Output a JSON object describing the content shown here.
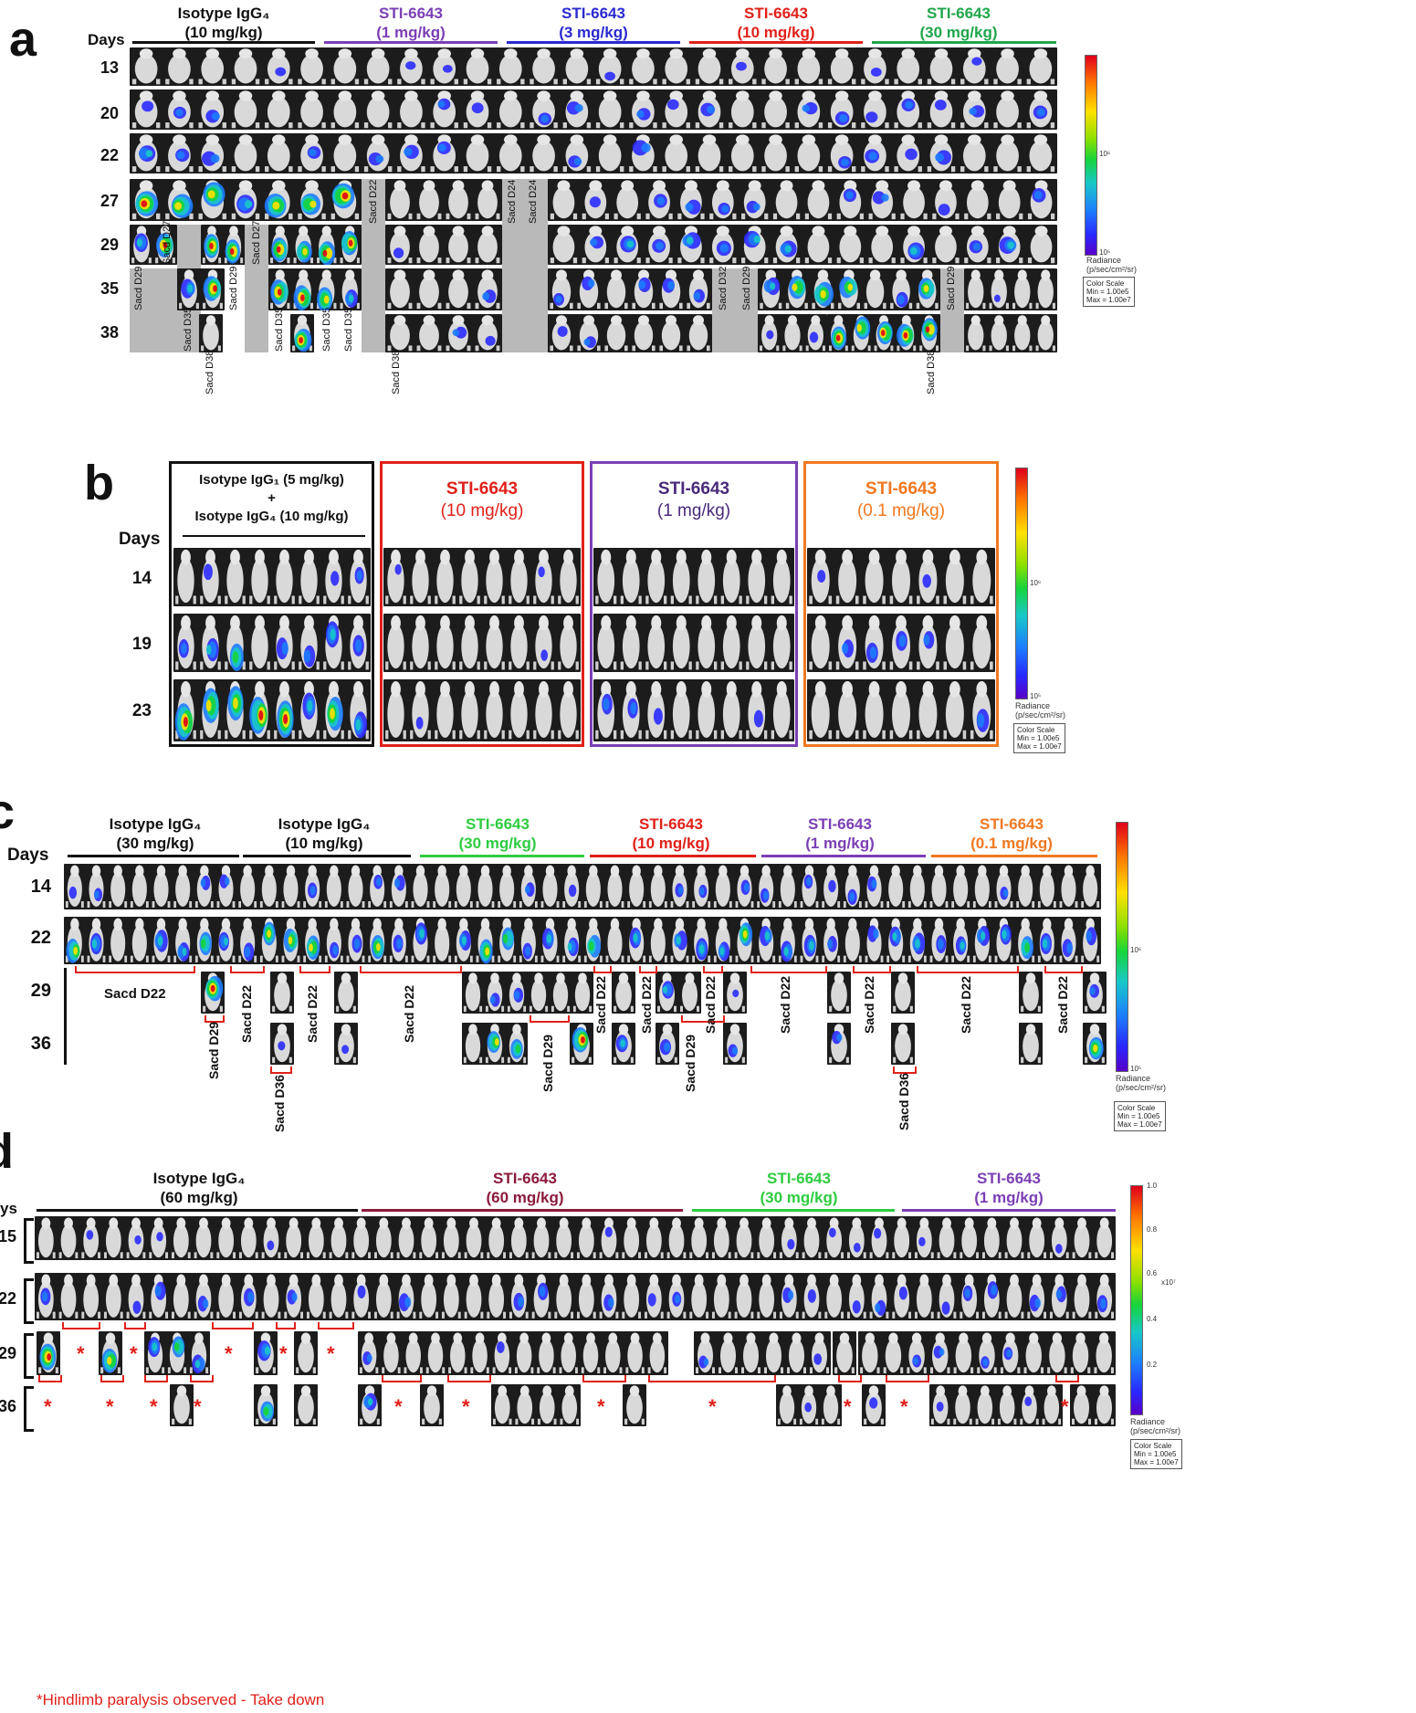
{
  "panel_a": {
    "label": "a",
    "days_label": "Days",
    "days": [
      "13",
      "20",
      "22",
      "27",
      "29",
      "35",
      "38"
    ],
    "groups": [
      {
        "line1": "Isotype IgG₄",
        "line2": "(10 mg/kg)",
        "color": "#111111"
      },
      {
        "line1": "STI-6643",
        "line2": "(1 mg/kg)",
        "color": "#7b3fb5"
      },
      {
        "line1": "STI-6643",
        "line2": "(3 mg/kg)",
        "color": "#2a2ad0"
      },
      {
        "line1": "STI-6643",
        "line2": "(10 mg/kg)",
        "color": "#e0201a"
      },
      {
        "line1": "STI-6643",
        "line2": "(30 mg/kg)",
        "color": "#1fa64a"
      }
    ],
    "sacd_labels": [
      "Sacd D27",
      "Sacd D27",
      "Sacd D22",
      "Sacd D24",
      "Sacd D24",
      "Sacd D29",
      "Sacd D29",
      "Sacd D35",
      "Sacd D35",
      "Sacd D35",
      "Sacd D35",
      "Sacd D32",
      "Sacd D29",
      "Sacd D29",
      "Sacd D38",
      "Sacd D38",
      "Sacd D38"
    ],
    "colorbar": {
      "title": "Radiance",
      "units": "(p/sec/cm²/sr)",
      "mid": "10⁶",
      "low": "10⁵",
      "scale_title": "Color Scale",
      "min": "Min = 1.00e5",
      "max": "Max = 1.00e7"
    }
  },
  "panel_b": {
    "label": "b",
    "days_label": "Days",
    "days": [
      "14",
      "19",
      "23"
    ],
    "groups": [
      {
        "line1": "Isotype IgG₁ (5 mg/kg)",
        "line2": "+",
        "line3": "Isotype IgG₄ (10 mg/kg)",
        "color": "#111111"
      },
      {
        "line1": "STI-6643",
        "line2": "(10 mg/kg)",
        "color": "#e0201a"
      },
      {
        "line1": "STI-6643",
        "line2": "(1 mg/kg)",
        "color": "#7b3fb5"
      },
      {
        "line1": "STI-6643",
        "line2": "(0.1 mg/kg)",
        "color": "#f07820"
      }
    ],
    "colorbar": {
      "title": "Radiance",
      "units": "(p/sec/cm²/sr)",
      "mid": "10⁶",
      "low": "10⁵",
      "scale_title": "Color Scale",
      "min": "Min = 1.00e5",
      "max": "Max = 1.00e7"
    }
  },
  "panel_c": {
    "label": "c",
    "days_label": "Days",
    "days": [
      "14",
      "22",
      "29",
      "36"
    ],
    "groups": [
      {
        "line1": "Isotype IgG₄",
        "line2": "(30 mg/kg)",
        "color": "#111111"
      },
      {
        "line1": "Isotype IgG₄",
        "line2": "(10 mg/kg)",
        "color": "#111111"
      },
      {
        "line1": "STI-6643",
        "line2": "(30 mg/kg)",
        "color": "#2ecc40"
      },
      {
        "line1": "STI-6643",
        "line2": "(10 mg/kg)",
        "color": "#e0201a"
      },
      {
        "line1": "STI-6643",
        "line2": "(1 mg/kg)",
        "color": "#7b3fb5"
      },
      {
        "line1": "STI-6643",
        "line2": "(0.1 mg/kg)",
        "color": "#f07820"
      }
    ],
    "sacd_horizontal": "Sacd D22",
    "sacd_labels": [
      "Sacd D29",
      "Sacd D22",
      "Sacd D22",
      "Sacd D22",
      "Sacd D36",
      "Sacd D29",
      "Sacd D22",
      "Sacd D22",
      "Sacd D29",
      "Sacd D22",
      "Sacd D22",
      "Sacd D22",
      "Sacd D36",
      "Sacd D22",
      "Sacd D22"
    ],
    "colorbar": {
      "title": "Radiance",
      "units": "(p/sec/cm²/sr)",
      "mid": "10⁶",
      "low": "10⁵",
      "scale_title": "Color Scale",
      "min": "Min = 1.00e5",
      "max": "Max = 1.00e7"
    }
  },
  "panel_d": {
    "label": "d",
    "days_label": "ys",
    "days": [
      "15",
      "22",
      "29",
      "36"
    ],
    "groups": [
      {
        "line1": "Isotype IgG₄",
        "line2": "(60 mg/kg)",
        "color": "#111111"
      },
      {
        "line1": "STI-6643",
        "line2": "(60 mg/kg)",
        "color": "#8b1a3a"
      },
      {
        "line1": "STI-6643",
        "line2": "(30 mg/kg)",
        "color": "#2ecc40"
      },
      {
        "line1": "STI-6643",
        "line2": "(1 mg/kg)",
        "color": "#7b3fb5"
      }
    ],
    "footer": "*Hindlimb paralysis observed - Take down",
    "star": "*",
    "colorbar": {
      "ticks": [
        "1.0",
        "0.8",
        "0.6",
        "0.4",
        "0.2"
      ],
      "exp": "x10⁷",
      "title": "Radiance",
      "units": "(p/sec/cm²/sr)",
      "scale_title": "Color Scale",
      "min": "Min = 1.00e5",
      "max": "Max = 1.00e7"
    }
  }
}
